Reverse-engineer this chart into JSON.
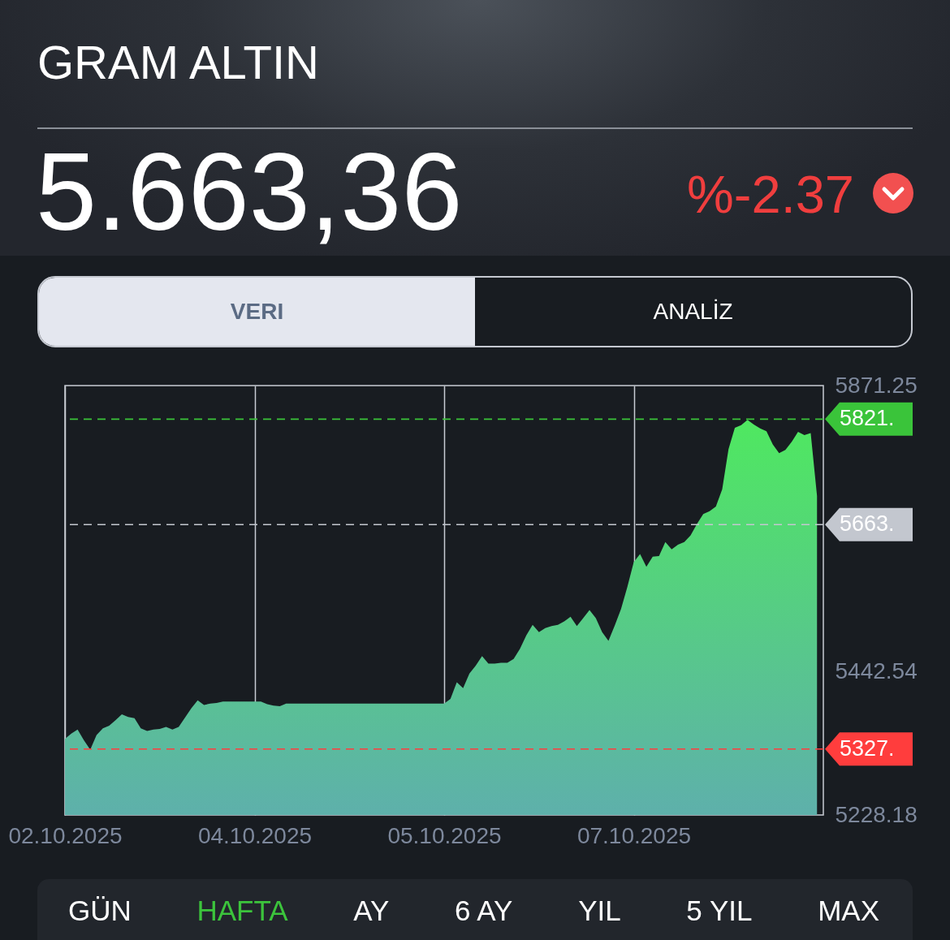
{
  "chart_data": {
    "type": "area",
    "title": "GRAM ALTIN",
    "annotations": [
      "5.663,36",
      "%-2.37",
      "VERI",
      "ANALİZ",
      "GÜN",
      "HAFTA",
      "AY",
      "6 AY",
      "YIL",
      "5 YIL",
      "MAX"
    ],
    "categories": [
      "02.10.2025",
      null,
      null,
      null,
      null,
      null,
      null,
      null,
      null,
      null,
      null,
      null,
      null,
      null,
      null,
      null,
      null,
      null,
      null,
      null,
      null,
      null,
      null,
      null,
      null,
      null,
      null,
      null,
      null,
      null,
      "04.10.2025",
      null,
      null,
      null,
      null,
      null,
      null,
      null,
      null,
      null,
      null,
      null,
      null,
      null,
      null,
      null,
      null,
      null,
      null,
      null,
      null,
      null,
      null,
      null,
      null,
      null,
      null,
      null,
      null,
      null,
      "05.10.2025",
      null,
      null,
      null,
      null,
      null,
      null,
      null,
      null,
      null,
      null,
      null,
      null,
      null,
      null,
      null,
      null,
      null,
      null,
      null,
      null,
      null,
      null,
      null,
      null,
      null,
      null,
      null,
      null,
      null,
      "07.10.2025",
      null,
      null,
      null,
      null,
      null,
      null,
      null,
      null,
      null,
      null,
      null,
      null,
      null,
      null,
      null,
      null,
      null,
      null,
      null,
      null,
      null,
      null,
      null,
      null,
      null,
      null,
      null,
      null,
      null
    ],
    "values": [
      5342,
      5350,
      5356,
      5340,
      5326,
      5348,
      5358,
      5362,
      5370,
      5379,
      5375,
      5373,
      5358,
      5354,
      5356,
      5357,
      5360,
      5356,
      5360,
      5374,
      5388,
      5400,
      5393,
      5395,
      5396,
      5398,
      5398,
      5398,
      5398,
      5398,
      5398,
      5398,
      5394,
      5392,
      5391,
      5395,
      5395,
      5395,
      5395,
      5395,
      5395,
      5395,
      5395,
      5395,
      5395,
      5395,
      5395,
      5395,
      5395,
      5395,
      5395,
      5395,
      5395,
      5395,
      5395,
      5395,
      5395,
      5395,
      5395,
      5395,
      5395,
      5402,
      5427,
      5418,
      5440,
      5452,
      5466,
      5455,
      5455,
      5456,
      5456,
      5462,
      5477,
      5497,
      5513,
      5502,
      5508,
      5511,
      5513,
      5518,
      5525,
      5511,
      5523,
      5535,
      5523,
      5502,
      5489,
      5512,
      5537,
      5570,
      5607,
      5619,
      5600,
      5615,
      5616,
      5637,
      5626,
      5633,
      5637,
      5647,
      5664,
      5679,
      5683,
      5690,
      5716,
      5776,
      5808,
      5812,
      5820,
      5813,
      5807,
      5803,
      5783,
      5770,
      5775,
      5787,
      5802,
      5797,
      5800,
      5706
    ],
    "color": "#4fe860",
    "ylim": [
      5228.18,
      5871.25
    ],
    "yticks": [
      5228.18,
      5442.54,
      5871.25
    ],
    "grid": "x",
    "ref_lines": [
      {
        "axis": "y",
        "value": 5821,
        "label": "5821.",
        "color": "#3ac43a",
        "line_style": "dashed"
      },
      {
        "axis": "y",
        "value": 5663,
        "label": "5663.",
        "color": "#c3c7cf",
        "line_style": "dashed"
      },
      {
        "axis": "y",
        "value": 5327,
        "label": "5327.",
        "color": "#ff3d3d",
        "line_style": "dashed"
      }
    ]
  }
}
